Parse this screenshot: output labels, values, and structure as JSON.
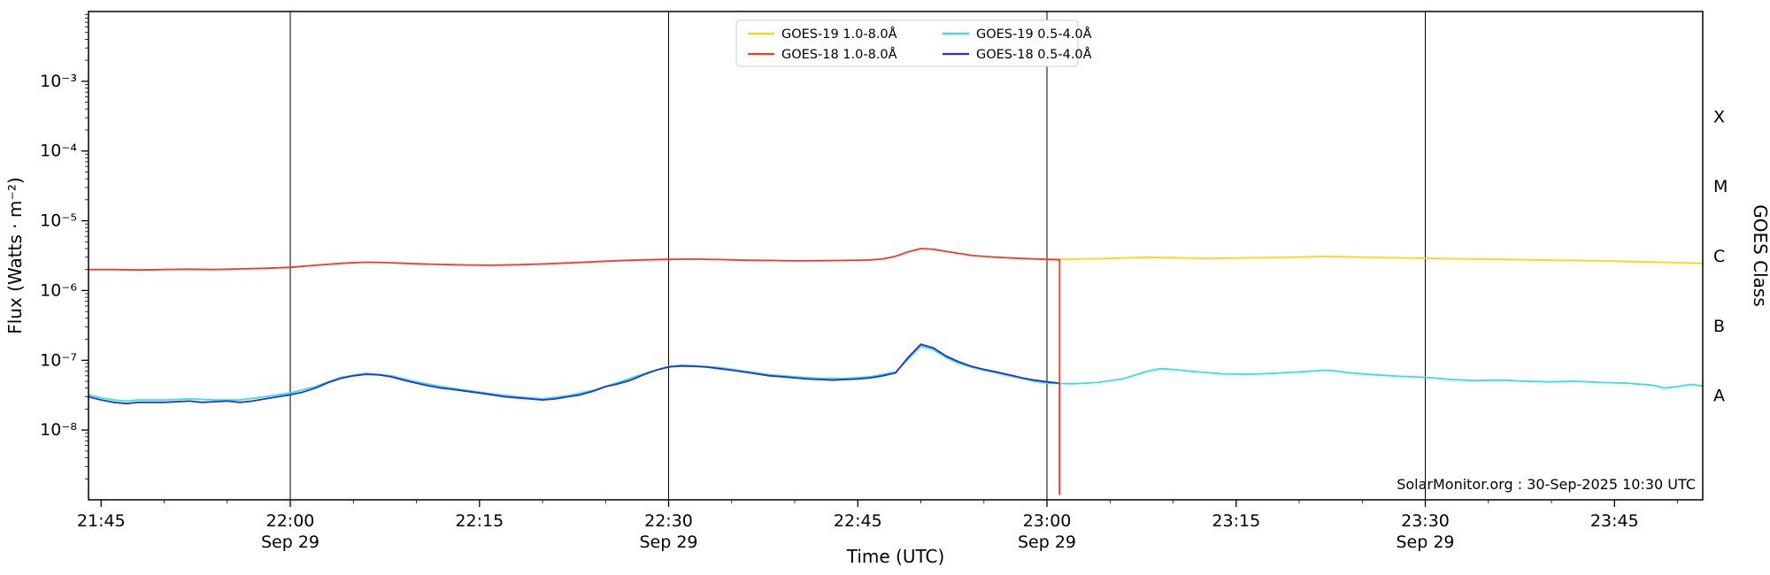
{
  "chart_data": {
    "type": "line",
    "title": "",
    "xlabel": "Time (UTC)",
    "ylabel_left": "Flux (Watts · m⁻²)",
    "ylabel_right": "GOES Class",
    "annotation": "SolarMonitor.org : 30-Sep-2025 10:30 UTC",
    "x_axis": {
      "unit": "minutes after 21:00 UTC",
      "range": [
        44,
        172
      ],
      "minor_tick_step": 5,
      "date_gridlines_x": [
        60,
        90,
        120,
        150
      ],
      "major_ticks": [
        {
          "x": 45,
          "label": "21:45",
          "date": ""
        },
        {
          "x": 60,
          "label": "22:00",
          "date": "Sep 29"
        },
        {
          "x": 75,
          "label": "22:15",
          "date": ""
        },
        {
          "x": 90,
          "label": "22:30",
          "date": "Sep 29"
        },
        {
          "x": 105,
          "label": "22:45",
          "date": ""
        },
        {
          "x": 120,
          "label": "23:00",
          "date": "Sep 29"
        },
        {
          "x": 135,
          "label": "23:15",
          "date": ""
        },
        {
          "x": 150,
          "label": "23:30",
          "date": "Sep 29"
        },
        {
          "x": 165,
          "label": "23:45",
          "date": ""
        }
      ]
    },
    "y_axis": {
      "scale": "log",
      "range_log10": [
        -9,
        -2
      ],
      "major_ticks": [
        {
          "log10": -3,
          "label": "10⁻³"
        },
        {
          "log10": -4,
          "label": "10⁻⁴"
        },
        {
          "log10": -5,
          "label": "10⁻⁵"
        },
        {
          "log10": -6,
          "label": "10⁻⁶"
        },
        {
          "log10": -7,
          "label": "10⁻⁷"
        },
        {
          "log10": -8,
          "label": "10⁻⁸"
        }
      ]
    },
    "right_axis_labels": [
      {
        "label": "X",
        "log10": -3.5
      },
      {
        "label": "M",
        "log10": -4.5
      },
      {
        "label": "C",
        "log10": -5.5
      },
      {
        "label": "B",
        "log10": -6.5
      },
      {
        "label": "A",
        "log10": -7.5
      }
    ],
    "legend": {
      "position": "top-center",
      "columns": 2,
      "entries_order": [
        "goes19_long",
        "goes18_long",
        "goes19_short",
        "goes18_short"
      ]
    },
    "series": [
      {
        "id": "goes19_short",
        "name": "GOES-19 0.5-4.0Å",
        "color": "#33e0e0",
        "points": [
          [
            44,
            3.2e-08
          ],
          [
            45,
            2.9e-08
          ],
          [
            46,
            2.7e-08
          ],
          [
            47,
            2.6e-08
          ],
          [
            48,
            2.7e-08
          ],
          [
            50,
            2.7e-08
          ],
          [
            52,
            2.8e-08
          ],
          [
            54,
            2.7e-08
          ],
          [
            56,
            2.7e-08
          ],
          [
            58,
            3e-08
          ],
          [
            60,
            3.4e-08
          ],
          [
            62,
            4.2e-08
          ],
          [
            64,
            5.7e-08
          ],
          [
            66,
            6.5e-08
          ],
          [
            68,
            6e-08
          ],
          [
            70,
            4.9e-08
          ],
          [
            72,
            4.2e-08
          ],
          [
            74,
            3.7e-08
          ],
          [
            76,
            3.3e-08
          ],
          [
            78,
            3e-08
          ],
          [
            80,
            2.8e-08
          ],
          [
            82,
            3.1e-08
          ],
          [
            84,
            3.7e-08
          ],
          [
            86,
            4.8e-08
          ],
          [
            88,
            6.4e-08
          ],
          [
            90,
            8.2e-08
          ],
          [
            91,
            8.5e-08
          ],
          [
            92,
            8.4e-08
          ],
          [
            94,
            7.9e-08
          ],
          [
            96,
            7e-08
          ],
          [
            98,
            6.2e-08
          ],
          [
            100,
            5.8e-08
          ],
          [
            102,
            5.5e-08
          ],
          [
            104,
            5.5e-08
          ],
          [
            106,
            5.8e-08
          ],
          [
            108,
            6.8e-08
          ],
          [
            109,
            1.05e-07
          ],
          [
            110,
            1.6e-07
          ],
          [
            111,
            1.42e-07
          ],
          [
            112,
            1.1e-07
          ],
          [
            113,
            9.1e-08
          ],
          [
            114,
            8e-08
          ],
          [
            115,
            7.2e-08
          ],
          [
            116,
            6.6e-08
          ],
          [
            117,
            6e-08
          ],
          [
            118,
            5.5e-08
          ],
          [
            119,
            5e-08
          ],
          [
            120,
            4.7e-08
          ],
          [
            122,
            4.6e-08
          ],
          [
            124,
            4.8e-08
          ],
          [
            126,
            5.4e-08
          ],
          [
            128,
            7e-08
          ],
          [
            129,
            7.6e-08
          ],
          [
            130,
            7.4e-08
          ],
          [
            132,
            6.8e-08
          ],
          [
            134,
            6.4e-08
          ],
          [
            136,
            6.3e-08
          ],
          [
            138,
            6.5e-08
          ],
          [
            140,
            6.8e-08
          ],
          [
            142,
            7.2e-08
          ],
          [
            143,
            7e-08
          ],
          [
            144,
            6.6e-08
          ],
          [
            146,
            6.2e-08
          ],
          [
            148,
            5.9e-08
          ],
          [
            150,
            5.7e-08
          ],
          [
            152,
            5.3e-08
          ],
          [
            154,
            5.1e-08
          ],
          [
            156,
            5.2e-08
          ],
          [
            158,
            5e-08
          ],
          [
            160,
            4.9e-08
          ],
          [
            162,
            5e-08
          ],
          [
            164,
            4.8e-08
          ],
          [
            166,
            4.7e-08
          ],
          [
            168,
            4.4e-08
          ],
          [
            169,
            4e-08
          ],
          [
            170,
            4.2e-08
          ],
          [
            171,
            4.5e-08
          ],
          [
            172,
            4.3e-08
          ]
        ]
      },
      {
        "id": "goes18_short",
        "name": "GOES-18 0.5-4.0Å",
        "color": "#2730d8",
        "points": [
          [
            44,
            3e-08
          ],
          [
            45,
            2.7e-08
          ],
          [
            46,
            2.5e-08
          ],
          [
            47,
            2.4e-08
          ],
          [
            48,
            2.5e-08
          ],
          [
            50,
            2.5e-08
          ],
          [
            52,
            2.6e-08
          ],
          [
            53,
            2.5e-08
          ],
          [
            54,
            2.55e-08
          ],
          [
            55,
            2.6e-08
          ],
          [
            56,
            2.5e-08
          ],
          [
            57,
            2.6e-08
          ],
          [
            58,
            2.8e-08
          ],
          [
            59,
            3e-08
          ],
          [
            60,
            3.2e-08
          ],
          [
            61,
            3.5e-08
          ],
          [
            62,
            4e-08
          ],
          [
            63,
            4.8e-08
          ],
          [
            64,
            5.5e-08
          ],
          [
            65,
            6e-08
          ],
          [
            66,
            6.3e-08
          ],
          [
            67,
            6.2e-08
          ],
          [
            68,
            5.8e-08
          ],
          [
            69,
            5.2e-08
          ],
          [
            70,
            4.7e-08
          ],
          [
            71,
            4.3e-08
          ],
          [
            72,
            4e-08
          ],
          [
            73,
            3.8e-08
          ],
          [
            74,
            3.6e-08
          ],
          [
            75,
            3.4e-08
          ],
          [
            76,
            3.2e-08
          ],
          [
            77,
            3e-08
          ],
          [
            78,
            2.9e-08
          ],
          [
            79,
            2.8e-08
          ],
          [
            80,
            2.7e-08
          ],
          [
            81,
            2.8e-08
          ],
          [
            82,
            3e-08
          ],
          [
            83,
            3.2e-08
          ],
          [
            84,
            3.6e-08
          ],
          [
            85,
            4.2e-08
          ],
          [
            86,
            4.6e-08
          ],
          [
            87,
            5.2e-08
          ],
          [
            88,
            6.2e-08
          ],
          [
            89,
            7.2e-08
          ],
          [
            90,
            8e-08
          ],
          [
            91,
            8.3e-08
          ],
          [
            92,
            8.2e-08
          ],
          [
            93,
            8e-08
          ],
          [
            94,
            7.6e-08
          ],
          [
            95,
            7.2e-08
          ],
          [
            96,
            6.8e-08
          ],
          [
            97,
            6.4e-08
          ],
          [
            98,
            6e-08
          ],
          [
            99,
            5.8e-08
          ],
          [
            100,
            5.6e-08
          ],
          [
            101,
            5.4e-08
          ],
          [
            102,
            5.3e-08
          ],
          [
            103,
            5.2e-08
          ],
          [
            104,
            5.3e-08
          ],
          [
            105,
            5.4e-08
          ],
          [
            106,
            5.6e-08
          ],
          [
            107,
            6e-08
          ],
          [
            108,
            6.6e-08
          ],
          [
            109,
            1.1e-07
          ],
          [
            110,
            1.7e-07
          ],
          [
            111,
            1.5e-07
          ],
          [
            112,
            1.15e-07
          ],
          [
            113,
            9.5e-08
          ],
          [
            114,
            8.2e-08
          ],
          [
            115,
            7.4e-08
          ],
          [
            116,
            6.8e-08
          ],
          [
            117,
            6.2e-08
          ],
          [
            118,
            5.6e-08
          ],
          [
            119,
            5.2e-08
          ],
          [
            120,
            4.9e-08
          ],
          [
            121,
            4.7e-08
          ],
          [
            121,
            1.2e-09
          ]
        ]
      },
      {
        "id": "goes19_long",
        "name": "GOES-19 1.0-8.0Å",
        "color": "#ffd60a",
        "points": [
          [
            120,
            2.78e-06
          ],
          [
            122,
            2.82e-06
          ],
          [
            124,
            2.86e-06
          ],
          [
            126,
            2.92e-06
          ],
          [
            128,
            3e-06
          ],
          [
            130,
            2.96e-06
          ],
          [
            132,
            2.9e-06
          ],
          [
            134,
            2.9e-06
          ],
          [
            136,
            2.94e-06
          ],
          [
            138,
            2.98e-06
          ],
          [
            140,
            3.02e-06
          ],
          [
            142,
            3.08e-06
          ],
          [
            144,
            3.04e-06
          ],
          [
            146,
            2.98e-06
          ],
          [
            148,
            2.94e-06
          ],
          [
            150,
            2.9e-06
          ],
          [
            152,
            2.86e-06
          ],
          [
            154,
            2.82e-06
          ],
          [
            156,
            2.8e-06
          ],
          [
            158,
            2.76e-06
          ],
          [
            160,
            2.72e-06
          ],
          [
            162,
            2.7e-06
          ],
          [
            164,
            2.66e-06
          ],
          [
            166,
            2.6e-06
          ],
          [
            168,
            2.56e-06
          ],
          [
            170,
            2.5e-06
          ],
          [
            172,
            2.46e-06
          ]
        ]
      },
      {
        "id": "goes18_long",
        "name": "GOES-18 1.0-8.0Å",
        "color": "#f93822",
        "points": [
          [
            44,
            2e-06
          ],
          [
            46,
            2e-06
          ],
          [
            48,
            1.97e-06
          ],
          [
            50,
            2e-06
          ],
          [
            52,
            2.02e-06
          ],
          [
            54,
            2e-06
          ],
          [
            56,
            2.04e-06
          ],
          [
            58,
            2.08e-06
          ],
          [
            60,
            2.15e-06
          ],
          [
            62,
            2.3e-06
          ],
          [
            64,
            2.45e-06
          ],
          [
            66,
            2.55e-06
          ],
          [
            68,
            2.5e-06
          ],
          [
            70,
            2.42e-06
          ],
          [
            72,
            2.36e-06
          ],
          [
            74,
            2.32e-06
          ],
          [
            76,
            2.3e-06
          ],
          [
            78,
            2.34e-06
          ],
          [
            80,
            2.4e-06
          ],
          [
            82,
            2.48e-06
          ],
          [
            84,
            2.58e-06
          ],
          [
            86,
            2.68e-06
          ],
          [
            88,
            2.75e-06
          ],
          [
            90,
            2.8e-06
          ],
          [
            92,
            2.82e-06
          ],
          [
            94,
            2.78e-06
          ],
          [
            96,
            2.72e-06
          ],
          [
            98,
            2.7e-06
          ],
          [
            100,
            2.66e-06
          ],
          [
            102,
            2.68e-06
          ],
          [
            104,
            2.7e-06
          ],
          [
            106,
            2.74e-06
          ],
          [
            107,
            2.85e-06
          ],
          [
            108,
            3.1e-06
          ],
          [
            109,
            3.6e-06
          ],
          [
            110,
            4e-06
          ],
          [
            111,
            3.9e-06
          ],
          [
            112,
            3.65e-06
          ],
          [
            113,
            3.4e-06
          ],
          [
            114,
            3.2e-06
          ],
          [
            115,
            3.08e-06
          ],
          [
            116,
            3e-06
          ],
          [
            117,
            2.94e-06
          ],
          [
            118,
            2.88e-06
          ],
          [
            119,
            2.84e-06
          ],
          [
            120,
            2.8e-06
          ],
          [
            121,
            2.76e-06
          ],
          [
            121,
            1.2e-09
          ]
        ]
      }
    ]
  }
}
